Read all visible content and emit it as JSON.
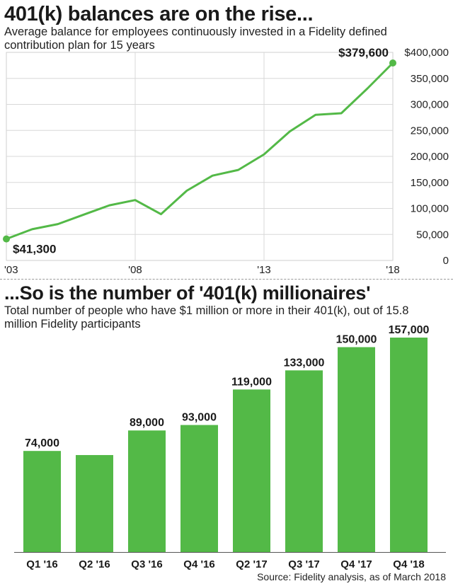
{
  "chart_data": [
    {
      "type": "line",
      "title": "401(k) balances are on the rise...",
      "subtitle": "Average balance for employees continuously invested in a Fidelity defined contribution plan for 15 years",
      "x_ticks": [
        "'03",
        "'08",
        "'13",
        "'18"
      ],
      "y_ticks": [
        "$400,000",
        "350,000",
        "300,000",
        "250,000",
        "200,000",
        "150,000",
        "100,000",
        "50,000",
        "0"
      ],
      "ylim": [
        0,
        400000
      ],
      "xlim": [
        2003,
        2018
      ],
      "grid": true,
      "series": [
        {
          "x": [
            2003,
            2004,
            2005,
            2006,
            2007,
            2008,
            2009,
            2010,
            2011,
            2012,
            2013,
            2014,
            2015,
            2016,
            2017,
            2018
          ],
          "values": [
            41300,
            60000,
            70000,
            88000,
            106000,
            116000,
            89000,
            134000,
            163000,
            174000,
            204000,
            248000,
            280000,
            283000,
            330000,
            379600
          ]
        }
      ],
      "annotations": [
        {
          "label": "$41,300",
          "x": 2003
        },
        {
          "label": "$379,600",
          "x": 2018
        }
      ]
    },
    {
      "type": "bar",
      "title": "...So is the number of '401(k) millionaires'",
      "subtitle": "Total number of people who have $1 million or more in their 401(k), out of 15.8 million Fidelity participants",
      "categories": [
        "Q1 '16",
        "Q2 '16",
        "Q3 '16",
        "Q4 '16",
        "Q2 '17",
        "Q3 '17",
        "Q4 '17",
        "Q4 '18"
      ],
      "values": [
        74000,
        71000,
        89000,
        93000,
        119000,
        133000,
        150000,
        157000
      ],
      "data_labels": [
        "74,000",
        "",
        "89,000",
        "93,000",
        "119,000",
        "133,000",
        "150,000",
        "157,000"
      ],
      "ylim": [
        0,
        157000
      ]
    }
  ],
  "source": "Source: Fidelity analysis, as of March 2018",
  "colors": {
    "accent": "#53b947",
    "grid": "#d8d8d8",
    "text": "#1a1a1a"
  }
}
